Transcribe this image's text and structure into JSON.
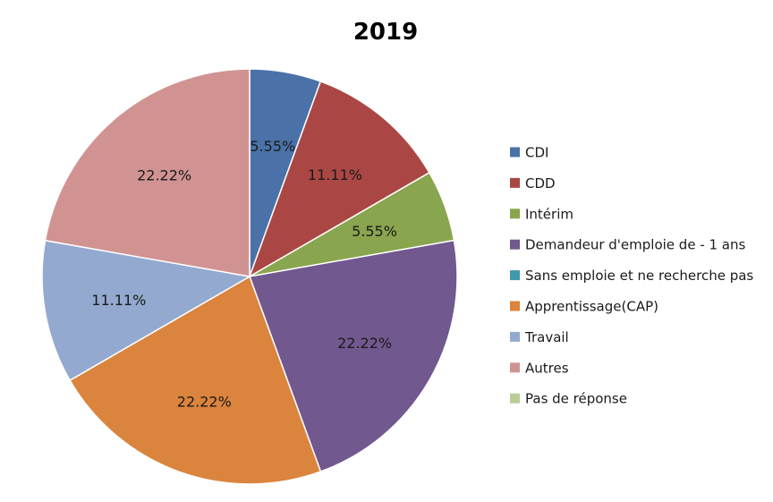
{
  "chart_data": {
    "type": "pie",
    "title": "2019",
    "legend_position": "right",
    "categories": [
      "CDI",
      "CDD",
      "Intérim",
      "Demandeur d'emploie de - 1 ans",
      "Sans emploie et ne recherche pas",
      "Apprentissage(CAP)",
      "Travail",
      "Autres",
      "Pas de réponse"
    ],
    "values": [
      5.55,
      11.11,
      5.55,
      22.22,
      0,
      22.22,
      11.11,
      22.22,
      0
    ],
    "labels": [
      "5.55%",
      "11.11%",
      "5.55%",
      "22.22%",
      "",
      "22.22%",
      "11.11%",
      "22.22%",
      ""
    ],
    "colors": [
      "#4A72A8",
      "#AA4744",
      "#89A54E",
      "#71588F",
      "#4198AF",
      "#DB843D",
      "#93A9CF",
      "#D19392",
      "#B9CD96"
    ]
  }
}
